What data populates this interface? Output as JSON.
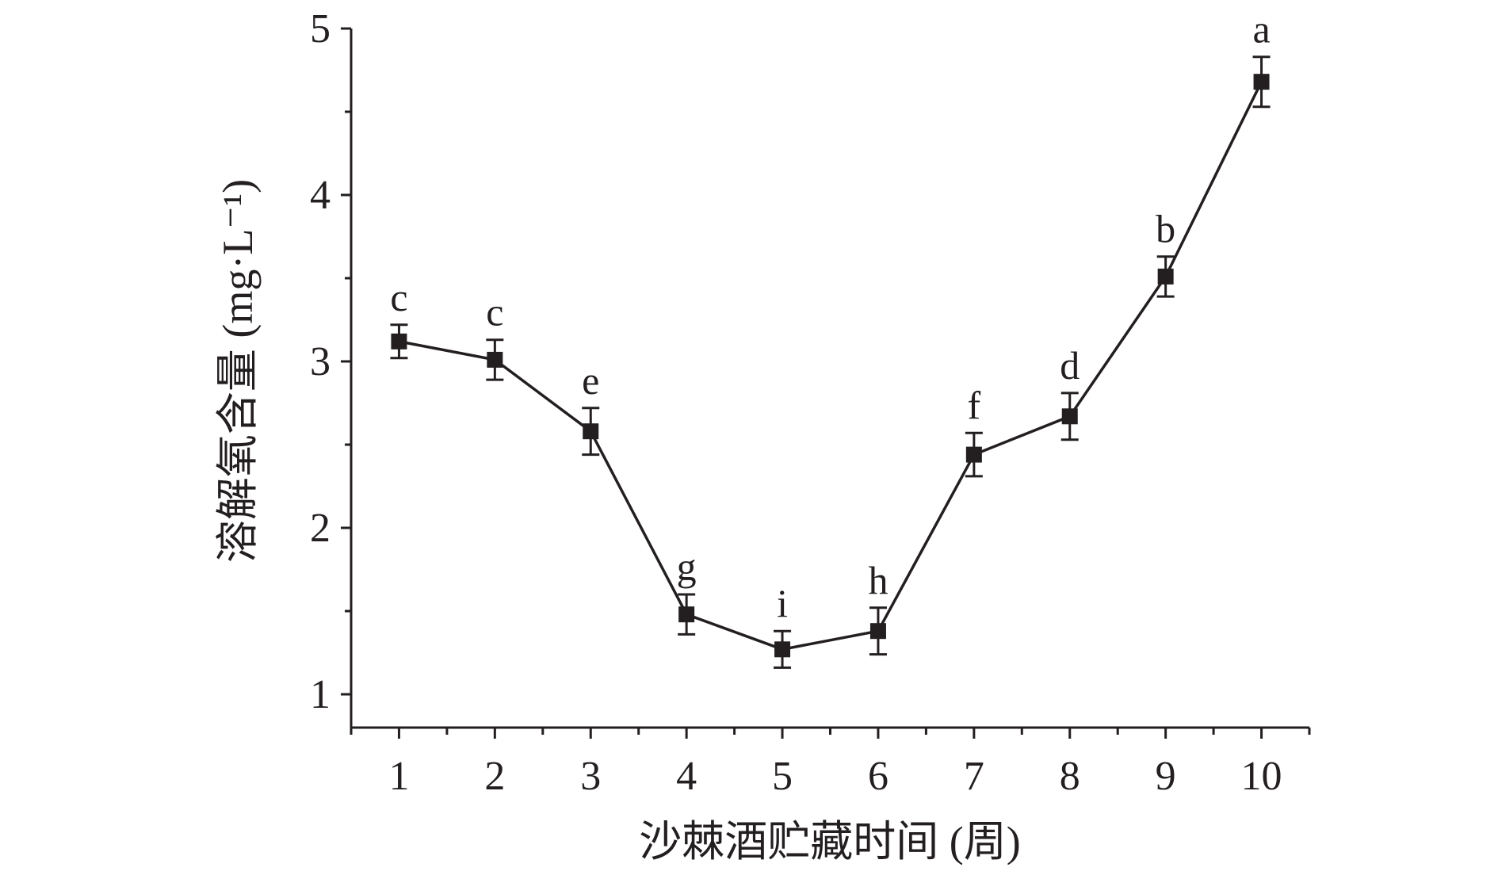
{
  "chart_data": {
    "type": "line",
    "xlabel": "沙棘酒贮藏时间 (周)",
    "ylabel": "溶解氧含量 (mg·L⁻¹)",
    "x": [
      1,
      2,
      3,
      4,
      5,
      6,
      7,
      8,
      9,
      10
    ],
    "xlim": [
      0.5,
      10.5
    ],
    "ylim": [
      0.8,
      5
    ],
    "y_ticks": [
      1,
      2,
      3,
      4,
      5
    ],
    "series": [
      {
        "values": [
          3.12,
          3.01,
          2.58,
          1.48,
          1.27,
          1.38,
          2.44,
          2.67,
          3.51,
          4.68
        ],
        "errors": [
          0.1,
          0.12,
          0.14,
          0.12,
          0.11,
          0.14,
          0.13,
          0.14,
          0.12,
          0.15
        ],
        "significance": [
          "c",
          "c",
          "e",
          "g",
          "i",
          "h",
          "f",
          "d",
          "b",
          "a"
        ]
      }
    ],
    "grid": false,
    "legend": "none",
    "colors": {
      "line": "#231f20",
      "marker": "#231f20",
      "text": "#231f20"
    }
  }
}
